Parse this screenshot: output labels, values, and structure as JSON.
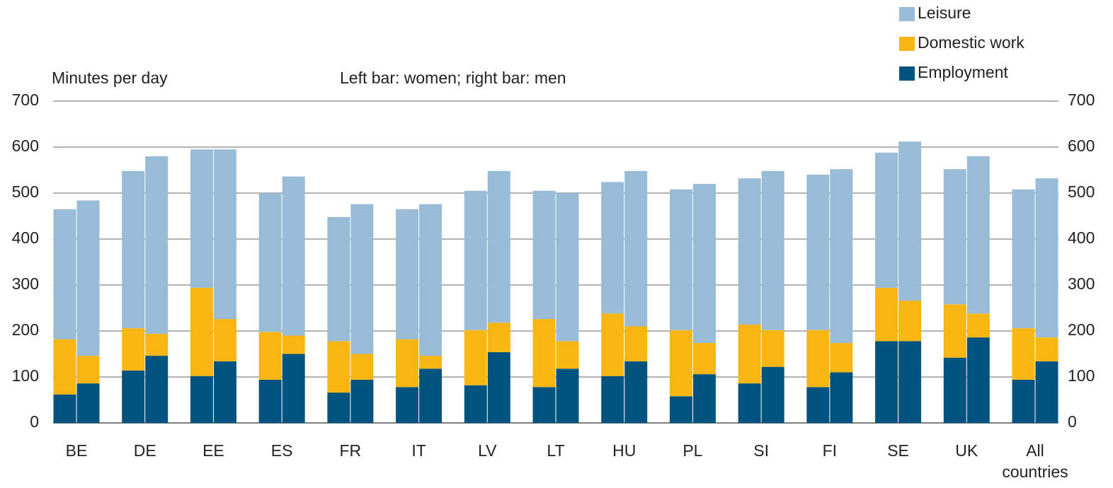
{
  "chart_data": {
    "type": "grouped_stacked_bar",
    "annotations": [
      "Minutes per day",
      "Left bar: women; right bar: men"
    ],
    "categories": [
      "BE",
      "DE",
      "EE",
      "ES",
      "FR",
      "IT",
      "LV",
      "LT",
      "HU",
      "PL",
      "SI",
      "FI",
      "SE",
      "UK",
      "All countries"
    ],
    "series": [
      {
        "name": "Employment",
        "color": "#00537e",
        "values": [
          [
            62,
            86
          ],
          [
            114,
            146
          ],
          [
            102,
            134
          ],
          [
            94,
            150
          ],
          [
            66,
            94
          ],
          [
            78,
            118
          ],
          [
            82,
            154
          ],
          [
            78,
            118
          ],
          [
            102,
            134
          ],
          [
            58,
            106
          ],
          [
            86,
            122
          ],
          [
            78,
            110
          ],
          [
            178,
            178
          ],
          [
            142,
            186
          ],
          [
            94,
            134
          ]
        ]
      },
      {
        "name": "Domestic work",
        "color": "#f9b513",
        "values": [
          [
            120,
            60
          ],
          [
            92,
            48
          ],
          [
            192,
            92
          ],
          [
            104,
            40
          ],
          [
            112,
            56
          ],
          [
            104,
            28
          ],
          [
            120,
            64
          ],
          [
            148,
            60
          ],
          [
            136,
            76
          ],
          [
            144,
            68
          ],
          [
            128,
            80
          ],
          [
            124,
            64
          ],
          [
            116,
            88
          ],
          [
            116,
            52
          ],
          [
            112,
            52
          ]
        ]
      },
      {
        "name": "Leisure",
        "color": "#98bcd6",
        "values": [
          [
            283,
            338
          ],
          [
            342,
            386
          ],
          [
            301,
            369
          ],
          [
            302,
            346
          ],
          [
            270,
            326
          ],
          [
            283,
            330
          ],
          [
            303,
            330
          ],
          [
            279,
            322
          ],
          [
            286,
            338
          ],
          [
            306,
            346
          ],
          [
            318,
            346
          ],
          [
            338,
            378
          ],
          [
            294,
            346
          ],
          [
            294,
            342
          ],
          [
            302,
            346
          ]
        ]
      }
    ],
    "ylim": [
      0,
      700
    ],
    "yticks": [
      0,
      100,
      200,
      300,
      400,
      500,
      600,
      700
    ],
    "grid": true
  }
}
